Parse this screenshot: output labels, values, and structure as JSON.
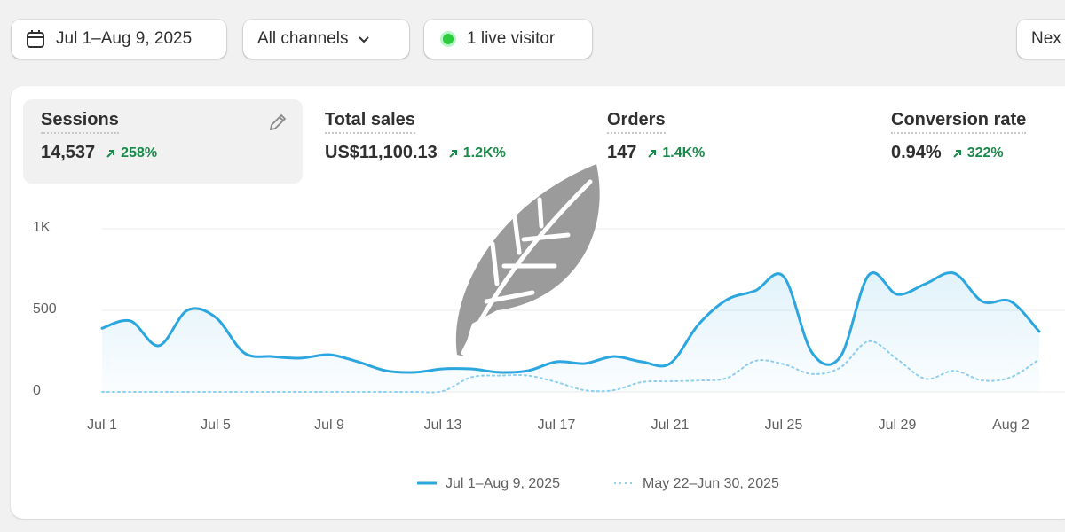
{
  "toolbar": {
    "date_range": "Jul 1–Aug 9, 2025",
    "channels": "All channels",
    "live_visitors": "1 live visitor",
    "next": "Nex"
  },
  "metrics": [
    {
      "label": "Sessions",
      "value": "14,537",
      "change": "258%"
    },
    {
      "label": "Total sales",
      "value": "US$11,100.13",
      "change": "1.2K%"
    },
    {
      "label": "Orders",
      "value": "147",
      "change": "1.4K%"
    },
    {
      "label": "Conversion rate",
      "value": "0.94%",
      "change": "322%"
    }
  ],
  "chart_data": {
    "type": "line",
    "categories": [
      "Jul 1",
      null,
      null,
      null,
      "Jul 5",
      null,
      null,
      null,
      "Jul 9",
      null,
      null,
      null,
      "Jul 13",
      null,
      null,
      null,
      "Jul 17",
      null,
      null,
      null,
      "Jul 21",
      null,
      null,
      null,
      "Jul 25",
      null,
      null,
      null,
      "Jul 29",
      null,
      null,
      null,
      "Aug 2",
      null
    ],
    "series": [
      {
        "name": "Jul 1–Aug 9, 2025",
        "color": "#2ba6de",
        "line_style": "solid",
        "values": [
          390,
          435,
          283,
          500,
          457,
          240,
          217,
          207,
          228,
          185,
          130,
          120,
          141,
          141,
          120,
          130,
          185,
          174,
          217,
          185,
          174,
          413,
          565,
          620,
          707,
          240,
          217,
          717,
          598,
          663,
          728,
          554,
          554,
          370
        ]
      },
      {
        "name": "May 22–Jun 30, 2025",
        "color": "#8fd0f0",
        "line_style": "dotted",
        "values": [
          0,
          0,
          0,
          0,
          0,
          0,
          0,
          0,
          0,
          0,
          0,
          0,
          5,
          90,
          100,
          100,
          60,
          10,
          10,
          60,
          65,
          70,
          85,
          190,
          170,
          110,
          150,
          310,
          200,
          80,
          130,
          70,
          90,
          200
        ]
      }
    ],
    "ylim": [
      0,
      1000
    ],
    "yticks": [
      0,
      500,
      {
        "value": 1000,
        "label": "1K"
      }
    ],
    "grid": true
  }
}
